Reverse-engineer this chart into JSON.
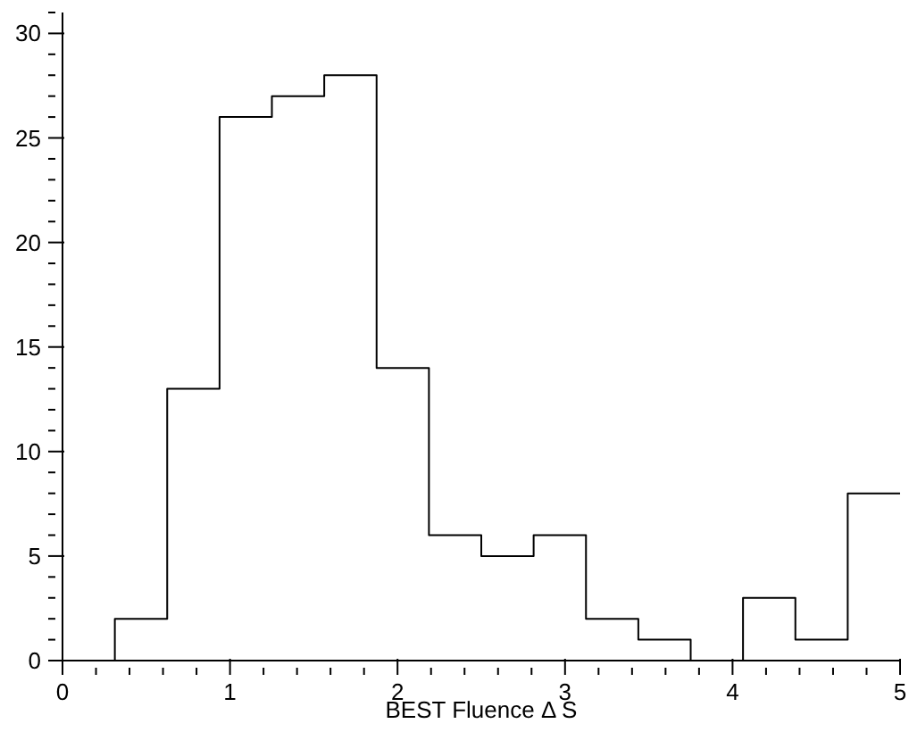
{
  "chart_data": {
    "type": "histogram",
    "xlabel": "BEST Fluence Δ S",
    "bins": [
      0,
      0.3125,
      0.625,
      0.9375,
      1.25,
      1.5625,
      1.875,
      2.1875,
      2.5,
      2.8125,
      3.125,
      3.4375,
      3.75,
      4.0625,
      4.375,
      4.6875,
      5
    ],
    "values": [
      0,
      2,
      13,
      26,
      27,
      28,
      14,
      6,
      5,
      6,
      2,
      1,
      0,
      3,
      1,
      8
    ],
    "color": "#000000",
    "xlim": [
      0,
      5
    ],
    "ylim": [
      0,
      31
    ],
    "xticks": [
      0,
      {
        "value": 0.2,
        "label": null
      },
      {
        "value": 0.4,
        "label": null
      },
      {
        "value": 0.6,
        "label": null
      },
      {
        "value": 0.8,
        "label": null
      },
      1,
      {
        "value": 1.2,
        "label": null
      },
      {
        "value": 1.4,
        "label": null
      },
      {
        "value": 1.6,
        "label": null
      },
      {
        "value": 1.8,
        "label": null
      },
      2,
      {
        "value": 2.2,
        "label": null
      },
      {
        "value": 2.4,
        "label": null
      },
      {
        "value": 2.6,
        "label": null
      },
      {
        "value": 2.8,
        "label": null
      },
      3,
      {
        "value": 3.2,
        "label": null
      },
      {
        "value": 3.4,
        "label": null
      },
      {
        "value": 3.6,
        "label": null
      },
      {
        "value": 3.8,
        "label": null
      },
      4,
      {
        "value": 4.2,
        "label": null
      },
      {
        "value": 4.4,
        "label": null
      },
      {
        "value": 4.6,
        "label": null
      },
      {
        "value": 4.8,
        "label": null
      },
      5
    ],
    "yticks": [
      0,
      {
        "value": 1,
        "label": null
      },
      {
        "value": 2,
        "label": null
      },
      {
        "value": 3,
        "label": null
      },
      {
        "value": 4,
        "label": null
      },
      5,
      {
        "value": 6,
        "label": null
      },
      {
        "value": 7,
        "label": null
      },
      {
        "value": 8,
        "label": null
      },
      {
        "value": 9,
        "label": null
      },
      10,
      {
        "value": 11,
        "label": null
      },
      {
        "value": 12,
        "label": null
      },
      {
        "value": 13,
        "label": null
      },
      {
        "value": 14,
        "label": null
      },
      15,
      {
        "value": 16,
        "label": null
      },
      {
        "value": 17,
        "label": null
      },
      {
        "value": 18,
        "label": null
      },
      {
        "value": 19,
        "label": null
      },
      20,
      {
        "value": 21,
        "label": null
      },
      {
        "value": 22,
        "label": null
      },
      {
        "value": 23,
        "label": null
      },
      {
        "value": 24,
        "label": null
      },
      25,
      {
        "value": 26,
        "label": null
      },
      {
        "value": 27,
        "label": null
      },
      {
        "value": 28,
        "label": null
      },
      {
        "value": 29,
        "label": null
      },
      30,
      {
        "value": 31,
        "label": null
      }
    ],
    "grid": false,
    "legend": false
  }
}
